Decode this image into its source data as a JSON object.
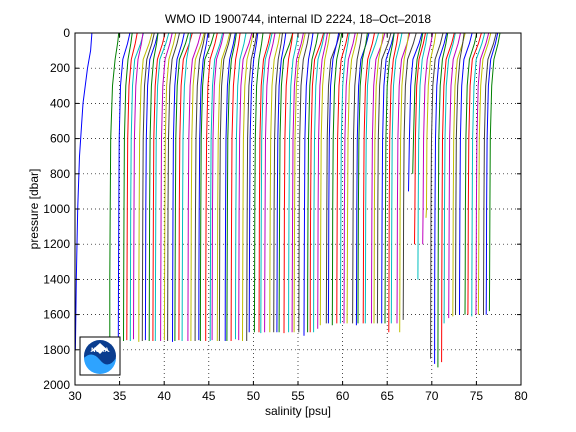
{
  "chart_data": {
    "type": "line",
    "title": "WMO ID 1900744, internal ID 2224, 18–Oct–2018",
    "xlabel": "salinity [psu]",
    "ylabel": "pressure [dbar]",
    "xlim": [
      30,
      80
    ],
    "ylim": [
      2000,
      0
    ],
    "y_reversed": true,
    "grid": true,
    "grid_style": "dotted",
    "x_ticks": [
      30,
      35,
      40,
      45,
      50,
      55,
      60,
      65,
      70,
      75,
      80
    ],
    "y_ticks": [
      0,
      200,
      400,
      600,
      800,
      1000,
      1200,
      1400,
      1600,
      1800,
      2000
    ],
    "series_colors": [
      "#0000ff",
      "#008000",
      "#ff0000",
      "#00bfbf",
      "#bf00bf",
      "#bfbf00",
      "#404040"
    ],
    "profiles": {
      "description_note": "waterfall of salinity profiles, each offset; first profile starts near 31.9 psu",
      "count": 100,
      "offset_step_psu": 0.42,
      "first_surface_psu": 31.9,
      "first_deep_psu": 30.0,
      "shapes": [
        {
          "p": [
            0,
            100,
            200,
            400,
            700,
            1000,
            1400,
            1800
          ],
          "s": [
            31.9,
            31.75,
            31.4,
            30.9,
            30.5,
            30.3,
            30.15,
            30.05
          ]
        },
        {
          "p": [
            0,
            50,
            150,
            300,
            600,
            1000,
            1400,
            1750
          ],
          "s": [
            34.9,
            34.8,
            34.5,
            34.2,
            34.0,
            33.95,
            33.9,
            33.9
          ]
        },
        {
          "p": [
            0,
            100,
            250,
            500,
            900,
            1300,
            1700
          ],
          "s": [
            35.5,
            35.1,
            34.8,
            34.6,
            34.5,
            34.45,
            34.4
          ]
        }
      ],
      "max_pressures": [
        1760,
        1750,
        1745,
        1750,
        1740,
        1755,
        1750,
        1745,
        1750,
        1750,
        1750,
        1750,
        1745,
        1750,
        1755,
        1750,
        1745,
        1750,
        1750,
        1750,
        1750,
        1745,
        1750,
        1750,
        1750,
        1745,
        1750,
        1750,
        1750,
        1750,
        1750,
        1740,
        1745,
        1750,
        1750,
        1700,
        1700,
        1700,
        1705,
        1700,
        1700,
        1700,
        1700,
        1700,
        1705,
        1700,
        1700,
        1700,
        1700,
        1720,
        1700,
        1700,
        1700,
        1680,
        1660,
        1650,
        1650,
        1660,
        1650,
        1650,
        1650,
        1650,
        1650,
        1660,
        1650,
        1650,
        1650,
        1650,
        1650,
        1650,
        1650,
        1650,
        1700,
        1650,
        1650,
        1700,
        1630,
        900,
        800,
        1200,
        1400,
        1200,
        1050,
        1850,
        1880,
        1900,
        1870,
        1650,
        1620,
        1610,
        1600,
        1600,
        1600,
        1600,
        1610,
        1600,
        1600,
        1600,
        1600,
        1580
      ]
    }
  },
  "logo": {
    "text": "NOAA"
  }
}
